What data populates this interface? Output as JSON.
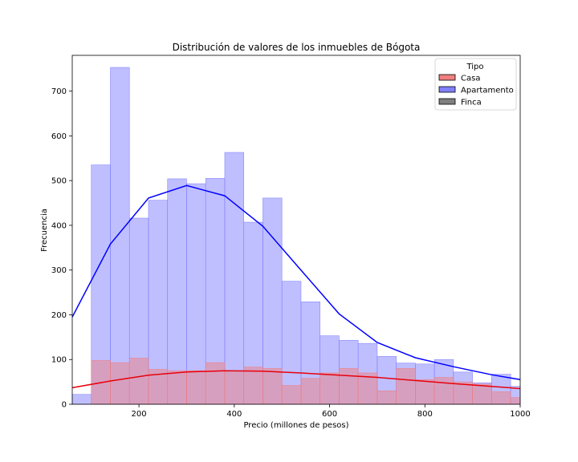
{
  "chart_data": {
    "type": "bar",
    "title": "Distribución de valores de los inmuebles de Bógota",
    "xlabel": "Precio (millones de pesos)",
    "ylabel": "Frecuencia",
    "xlim": [
      60,
      1000
    ],
    "ylim": [
      0,
      780
    ],
    "xticks": [
      200,
      400,
      600,
      800,
      1000
    ],
    "yticks": [
      0,
      100,
      200,
      300,
      400,
      500,
      600,
      700
    ],
    "grid": false,
    "legend": {
      "title": "Tipo",
      "placement": "top-right"
    },
    "bins": [
      60,
      100,
      140,
      180,
      220,
      260,
      300,
      340,
      380,
      420,
      460,
      500,
      540,
      580,
      620,
      660,
      700,
      740,
      780,
      820,
      860,
      900,
      940,
      980,
      1000
    ],
    "series": [
      {
        "name": "Casa",
        "color": "#f08080",
        "counts": [
          0,
          98,
          93,
          103,
          78,
          75,
          75,
          93,
          75,
          83,
          80,
          42,
          58,
          70,
          80,
          70,
          30,
          80,
          55,
          60,
          50,
          45,
          28,
          15
        ],
        "kde": {
          "x": [
            60,
            140,
            220,
            300,
            380,
            460,
            540,
            620,
            700,
            780,
            860,
            940,
            1000
          ],
          "y": [
            37,
            52,
            65,
            72,
            75,
            74,
            70,
            65,
            60,
            53,
            46,
            40,
            35
          ]
        }
      },
      {
        "name": "Apartamento",
        "color": "#8080ff",
        "counts": [
          22,
          535,
          753,
          416,
          456,
          504,
          493,
          505,
          563,
          407,
          461,
          275,
          229,
          153,
          143,
          136,
          107,
          92,
          90,
          100,
          72,
          48,
          67,
          40
        ],
        "kde": {
          "x": [
            60,
            140,
            220,
            300,
            380,
            460,
            540,
            620,
            700,
            780,
            860,
            940,
            1000
          ],
          "y": [
            195,
            358,
            461,
            489,
            466,
            398,
            300,
            202,
            138,
            104,
            84,
            66,
            55
          ]
        }
      },
      {
        "name": "Finca",
        "color": "#808080",
        "counts": [
          0,
          0,
          0,
          0,
          0,
          0,
          0,
          0,
          0,
          0,
          0,
          0,
          0,
          0,
          0,
          0,
          0,
          0,
          0,
          0,
          0,
          0,
          0,
          0
        ]
      }
    ]
  }
}
